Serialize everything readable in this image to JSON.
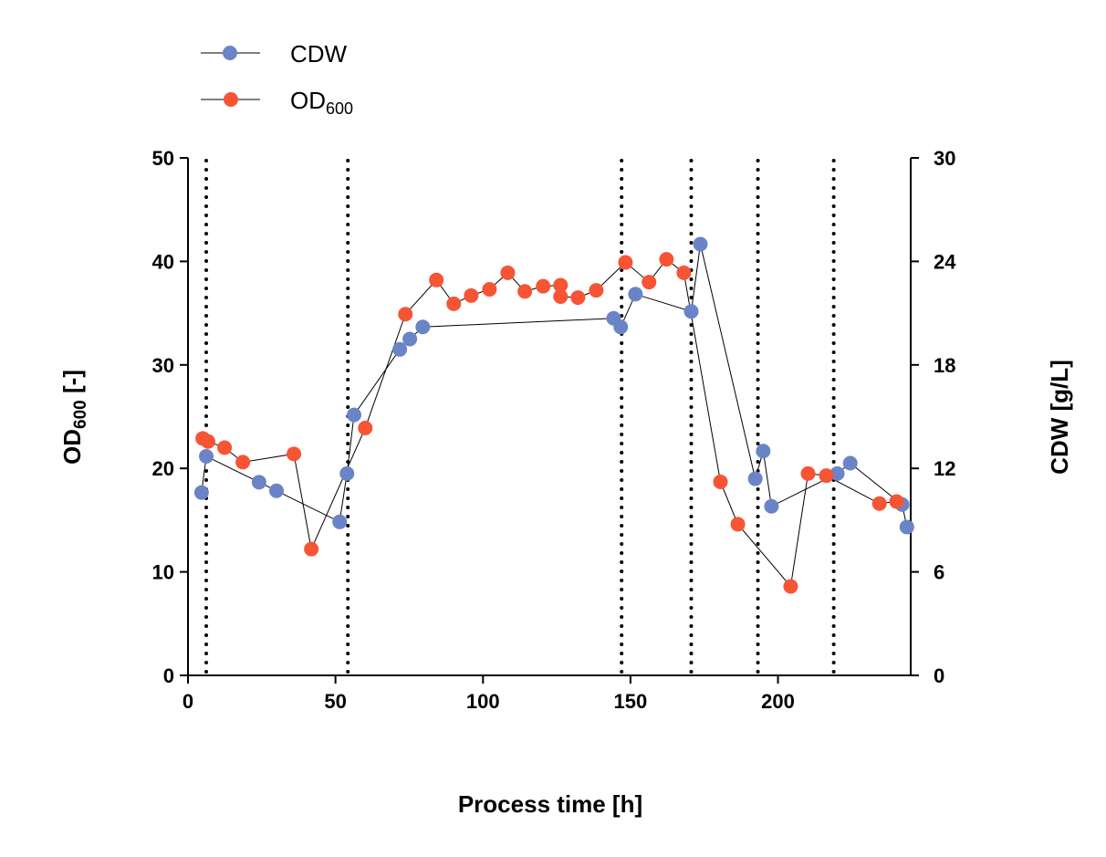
{
  "chart_data": {
    "type": "line",
    "xlabel": "Process time [h]",
    "ylabel_left": {
      "main": "OD",
      "sub": "600",
      "suffix": " [-]"
    },
    "ylabel_right": "CDW [g/L]",
    "xlim": [
      0,
      245
    ],
    "ylim_left": [
      0,
      50
    ],
    "ylim_right": [
      0,
      30
    ],
    "x_ticks": [
      "0",
      "50",
      "100",
      "150",
      "200"
    ],
    "y_left_ticks": [
      "0",
      "10",
      "20",
      "30",
      "40",
      "50"
    ],
    "y_right_ticks": [
      "0",
      "6",
      "12",
      "18",
      "24",
      "30"
    ],
    "grid": false,
    "legend_position": "top-left",
    "vertical_lines_x": [
      6.2,
      54.2,
      147,
      170.6,
      193.2,
      218.9
    ],
    "series": [
      {
        "name": "CDW",
        "axis": "right",
        "color": "#6A84C7",
        "x": [
          4.6,
          6.2,
          24.1,
          30.0,
          51.4,
          53.9,
          56.3,
          71.8,
          75.2,
          79.6,
          144.3,
          146.7,
          151.7,
          170.6,
          173.7,
          192.3,
          195.0,
          197.8,
          220.1,
          224.5,
          242.1,
          243.7
        ],
        "y": [
          10.6,
          12.7,
          11.2,
          10.7,
          8.9,
          11.7,
          15.1,
          18.9,
          19.5,
          20.2,
          20.7,
          20.2,
          22.1,
          21.1,
          25.0,
          11.4,
          13.0,
          9.8,
          11.7,
          12.3,
          9.9,
          8.6
        ]
      },
      {
        "name": "OD",
        "name_sub": "600",
        "axis": "left",
        "color": "#F65434",
        "x": [
          5.0,
          6.8,
          12.4,
          18.6,
          35.9,
          41.8,
          60.1,
          73.7,
          84.2,
          90.1,
          96.0,
          102.2,
          108.4,
          114.2,
          120.4,
          126.3,
          126.3,
          132.2,
          138.4,
          148.3,
          156.3,
          162.2,
          168.1,
          180.5,
          186.4,
          204.3,
          210.2,
          216.4,
          234.4,
          240.2
        ],
        "y": [
          22.9,
          22.6,
          22.0,
          20.6,
          21.4,
          12.2,
          23.9,
          34.9,
          38.2,
          35.9,
          36.7,
          37.3,
          38.9,
          37.1,
          37.6,
          37.7,
          36.6,
          36.5,
          37.2,
          39.9,
          38.0,
          40.2,
          38.9,
          18.7,
          14.6,
          8.6,
          19.5,
          19.3,
          16.6,
          16.8
        ]
      }
    ]
  }
}
